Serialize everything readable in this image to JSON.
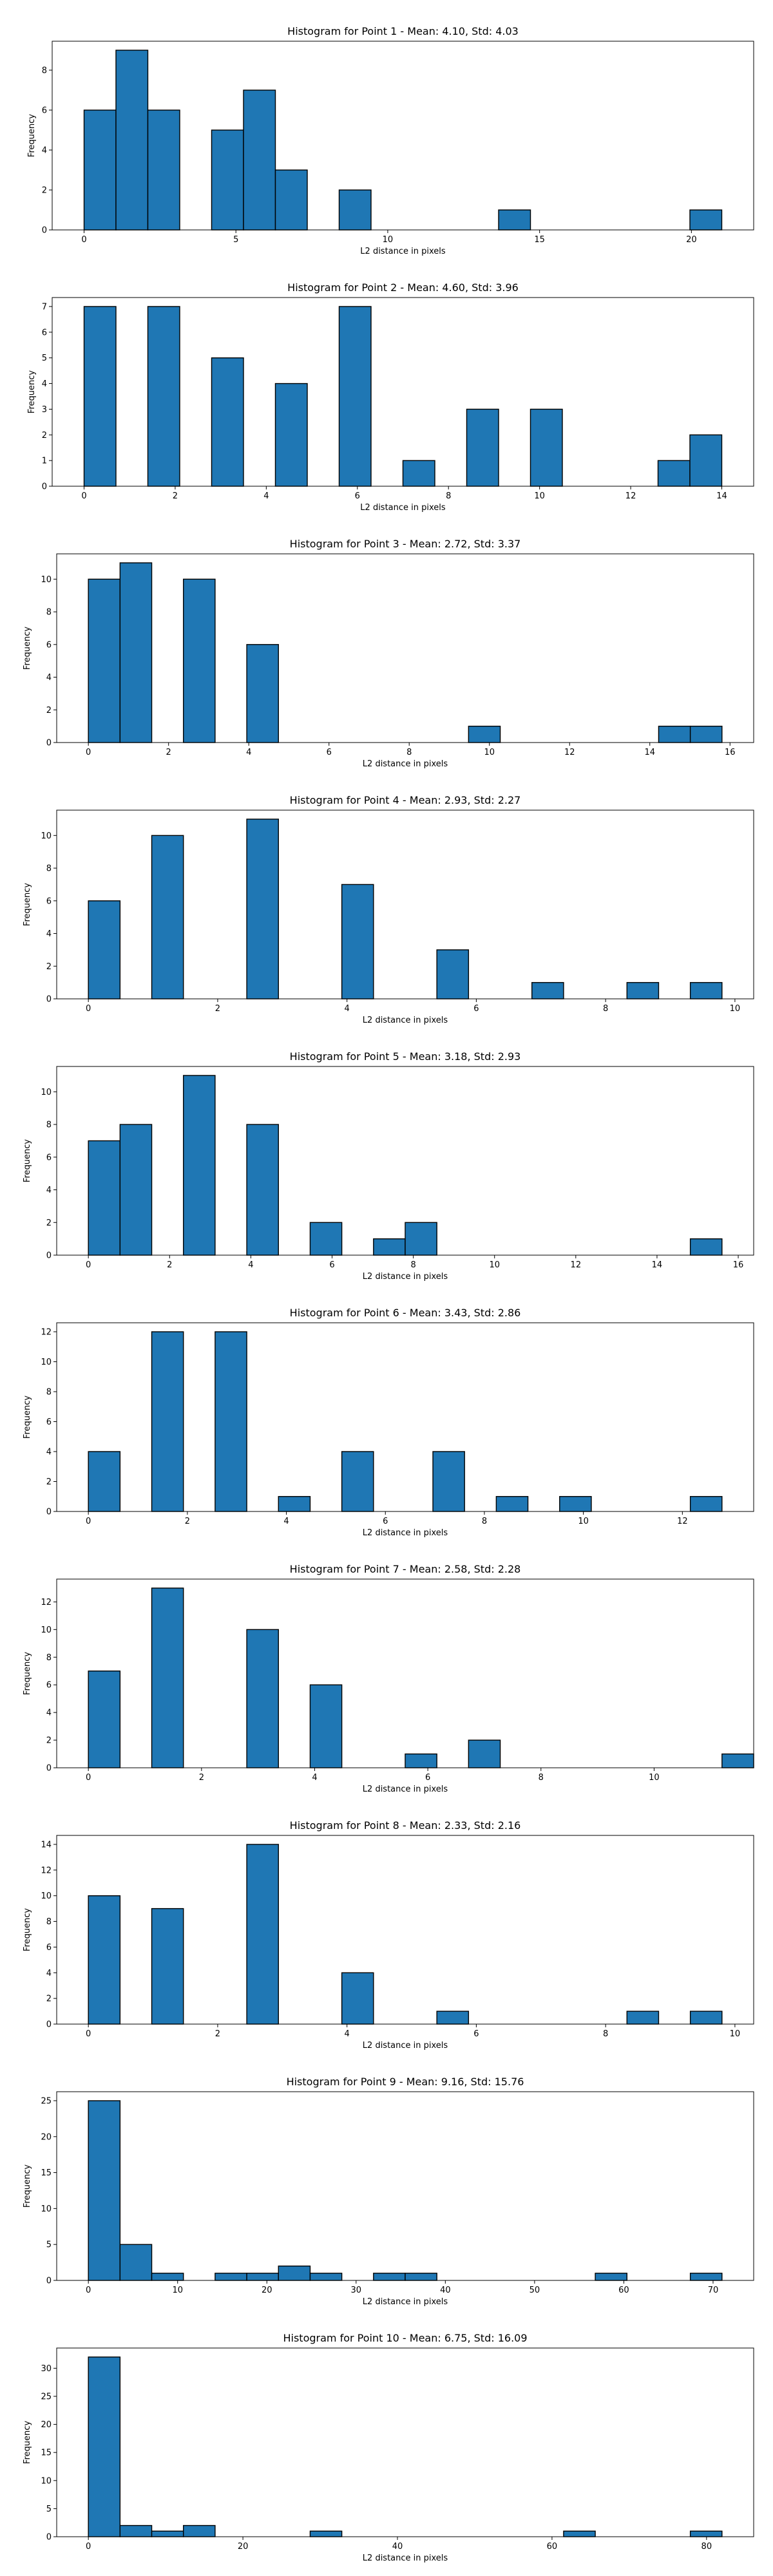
{
  "bar_color": "#1f77b4",
  "edge_color": "#000000",
  "chart_data": [
    {
      "type": "bar",
      "title": "Histogram for Point 1 - Mean: 4.10, Std: 4.03",
      "xlabel": "L2 distance in pixels",
      "ylabel": "Frequency",
      "xlim": [
        -1.05,
        22.05
      ],
      "ylim": [
        0,
        9.45
      ],
      "xticks": [
        0,
        5,
        10,
        15,
        20
      ],
      "yticks": [
        0,
        2,
        4,
        6,
        8
      ],
      "bin_width": 1.05,
      "bins": [
        {
          "x0": 0,
          "count": 6
        },
        {
          "x0": 1.05,
          "count": 9
        },
        {
          "x0": 2.1,
          "count": 6
        },
        {
          "x0": 4.2,
          "count": 5
        },
        {
          "x0": 5.25,
          "count": 7
        },
        {
          "x0": 6.3,
          "count": 3
        },
        {
          "x0": 8.4,
          "count": 2
        },
        {
          "x0": 13.65,
          "count": 1
        },
        {
          "x0": 19.95,
          "count": 1
        }
      ]
    },
    {
      "type": "bar",
      "title": "Histogram for Point 2 - Mean: 4.60, Std: 3.96",
      "xlabel": "L2 distance in pixels",
      "ylabel": "Frequency",
      "xlim": [
        -0.7,
        14.7
      ],
      "ylim": [
        0,
        7.35
      ],
      "xticks": [
        0,
        2,
        4,
        6,
        8,
        10,
        12,
        14
      ],
      "yticks": [
        0,
        1,
        2,
        3,
        4,
        5,
        6,
        7
      ],
      "bin_width": 0.7,
      "bins": [
        {
          "x0": 0,
          "count": 7
        },
        {
          "x0": 1.4,
          "count": 7
        },
        {
          "x0": 2.8,
          "count": 5
        },
        {
          "x0": 4.2,
          "count": 4
        },
        {
          "x0": 5.6,
          "count": 7
        },
        {
          "x0": 7.0,
          "count": 1
        },
        {
          "x0": 8.4,
          "count": 3
        },
        {
          "x0": 9.8,
          "count": 3
        },
        {
          "x0": 12.6,
          "count": 1
        },
        {
          "x0": 13.3,
          "count": 2
        }
      ]
    },
    {
      "type": "bar",
      "title": "Histogram for Point 3 - Mean: 2.72, Std: 3.37",
      "xlabel": "L2 distance in pixels",
      "ylabel": "Frequency",
      "xlim": [
        -0.79,
        16.59
      ],
      "ylim": [
        0,
        11.55
      ],
      "xticks": [
        0,
        2,
        4,
        6,
        8,
        10,
        12,
        14,
        16
      ],
      "yticks": [
        0,
        2,
        4,
        6,
        8,
        10
      ],
      "bin_width": 0.79,
      "bins": [
        {
          "x0": 0,
          "count": 10
        },
        {
          "x0": 0.79,
          "count": 11
        },
        {
          "x0": 2.37,
          "count": 10
        },
        {
          "x0": 3.95,
          "count": 6
        },
        {
          "x0": 9.48,
          "count": 1
        },
        {
          "x0": 14.22,
          "count": 1
        },
        {
          "x0": 15.01,
          "count": 1
        }
      ]
    },
    {
      "type": "bar",
      "title": "Histogram for Point 4 - Mean: 2.93, Std: 2.27",
      "xlabel": "L2 distance in pixels",
      "ylabel": "Frequency",
      "xlim": [
        -0.49,
        10.29
      ],
      "ylim": [
        0,
        11.55
      ],
      "xticks": [
        0,
        2,
        4,
        6,
        8,
        10
      ],
      "yticks": [
        0,
        2,
        4,
        6,
        8,
        10
      ],
      "bin_width": 0.49,
      "bins": [
        {
          "x0": 0,
          "count": 6
        },
        {
          "x0": 0.98,
          "count": 10
        },
        {
          "x0": 2.45,
          "count": 11
        },
        {
          "x0": 3.92,
          "count": 7
        },
        {
          "x0": 5.39,
          "count": 3
        },
        {
          "x0": 6.86,
          "count": 1
        },
        {
          "x0": 8.33,
          "count": 1
        },
        {
          "x0": 9.31,
          "count": 1
        }
      ]
    },
    {
      "type": "bar",
      "title": "Histogram for Point 5 - Mean: 3.18, Std: 2.93",
      "xlabel": "L2 distance in pixels",
      "ylabel": "Frequency",
      "xlim": [
        -0.78,
        16.38
      ],
      "ylim": [
        0,
        11.55
      ],
      "xticks": [
        0,
        2,
        4,
        6,
        8,
        10,
        12,
        14,
        16
      ],
      "yticks": [
        0,
        2,
        4,
        6,
        8,
        10
      ],
      "bin_width": 0.78,
      "bins": [
        {
          "x0": 0,
          "count": 7
        },
        {
          "x0": 0.78,
          "count": 8
        },
        {
          "x0": 2.34,
          "count": 11
        },
        {
          "x0": 3.9,
          "count": 8
        },
        {
          "x0": 5.46,
          "count": 2
        },
        {
          "x0": 7.02,
          "count": 1
        },
        {
          "x0": 7.8,
          "count": 2
        },
        {
          "x0": 14.82,
          "count": 1
        }
      ]
    },
    {
      "type": "bar",
      "title": "Histogram for Point 6 - Mean: 3.43, Std: 2.86",
      "xlabel": "L2 distance in pixels",
      "ylabel": "Frequency",
      "xlim": [
        -0.64,
        13.44
      ],
      "ylim": [
        0,
        12.6
      ],
      "xticks": [
        0,
        2,
        4,
        6,
        8,
        10,
        12
      ],
      "yticks": [
        0,
        2,
        4,
        6,
        8,
        10,
        12
      ],
      "bin_width": 0.64,
      "bins": [
        {
          "x0": 0,
          "count": 4
        },
        {
          "x0": 1.28,
          "count": 12
        },
        {
          "x0": 2.56,
          "count": 12
        },
        {
          "x0": 3.84,
          "count": 1
        },
        {
          "x0": 5.12,
          "count": 4
        },
        {
          "x0": 6.96,
          "count": 4
        },
        {
          "x0": 8.24,
          "count": 1
        },
        {
          "x0": 9.52,
          "count": 1
        },
        {
          "x0": 12.16,
          "count": 1
        }
      ]
    },
    {
      "type": "bar",
      "title": "Histogram for Point 7 - Mean: 2.58, Std: 2.28",
      "xlabel": "L2 distance in pixels",
      "ylabel": "Frequency",
      "xlim": [
        -0.56,
        11.76
      ],
      "ylim": [
        0,
        13.65
      ],
      "xticks": [
        0,
        2,
        4,
        6,
        8,
        10
      ],
      "yticks": [
        0,
        2,
        4,
        6,
        8,
        10,
        12
      ],
      "bin_width": 0.56,
      "bins": [
        {
          "x0": 0,
          "count": 7
        },
        {
          "x0": 1.12,
          "count": 13
        },
        {
          "x0": 2.8,
          "count": 10
        },
        {
          "x0": 3.92,
          "count": 6
        },
        {
          "x0": 5.6,
          "count": 1
        },
        {
          "x0": 6.72,
          "count": 2
        },
        {
          "x0": 11.2,
          "count": 1
        }
      ]
    },
    {
      "type": "bar",
      "title": "Histogram for Point 8 - Mean: 2.33, Std: 2.16",
      "xlabel": "L2 distance in pixels",
      "ylabel": "Frequency",
      "xlim": [
        -0.49,
        10.29
      ],
      "ylim": [
        0,
        14.7
      ],
      "xticks": [
        0,
        2,
        4,
        6,
        8,
        10
      ],
      "yticks": [
        0,
        2,
        4,
        6,
        8,
        10,
        12,
        14
      ],
      "bin_width": 0.49,
      "bins": [
        {
          "x0": 0,
          "count": 10
        },
        {
          "x0": 0.98,
          "count": 9
        },
        {
          "x0": 2.45,
          "count": 14
        },
        {
          "x0": 3.92,
          "count": 4
        },
        {
          "x0": 5.39,
          "count": 1
        },
        {
          "x0": 8.33,
          "count": 1
        },
        {
          "x0": 9.31,
          "count": 1
        }
      ]
    },
    {
      "type": "bar",
      "title": "Histogram for Point 9 - Mean: 9.16, Std: 15.76",
      "xlabel": "L2 distance in pixels",
      "ylabel": "Frequency",
      "xlim": [
        -3.55,
        74.55
      ],
      "ylim": [
        0,
        26.25
      ],
      "xticks": [
        0,
        10,
        20,
        30,
        40,
        50,
        60,
        70
      ],
      "yticks": [
        0,
        5,
        10,
        15,
        20,
        25
      ],
      "bin_width": 3.55,
      "bins": [
        {
          "x0": 0,
          "count": 25
        },
        {
          "x0": 3.55,
          "count": 5
        },
        {
          "x0": 7.1,
          "count": 1
        },
        {
          "x0": 14.2,
          "count": 1
        },
        {
          "x0": 17.75,
          "count": 1
        },
        {
          "x0": 21.3,
          "count": 2
        },
        {
          "x0": 24.85,
          "count": 1
        },
        {
          "x0": 31.95,
          "count": 1
        },
        {
          "x0": 35.5,
          "count": 1
        },
        {
          "x0": 56.8,
          "count": 1
        },
        {
          "x0": 67.45,
          "count": 1
        }
      ]
    },
    {
      "type": "bar",
      "title": "Histogram for Point 10 - Mean: 6.75, Std: 16.09",
      "xlabel": "L2 distance in pixels",
      "ylabel": "Frequency",
      "xlim": [
        -4.1,
        86.1
      ],
      "ylim": [
        0,
        33.6
      ],
      "xticks": [
        0,
        20,
        40,
        60,
        80
      ],
      "yticks": [
        0,
        5,
        10,
        15,
        20,
        25,
        30
      ],
      "bin_width": 4.1,
      "bins": [
        {
          "x0": 0,
          "count": 32
        },
        {
          "x0": 4.1,
          "count": 2
        },
        {
          "x0": 8.2,
          "count": 1
        },
        {
          "x0": 12.3,
          "count": 2
        },
        {
          "x0": 28.7,
          "count": 1
        },
        {
          "x0": 61.5,
          "count": 1
        },
        {
          "x0": 77.9,
          "count": 1
        }
      ]
    }
  ]
}
